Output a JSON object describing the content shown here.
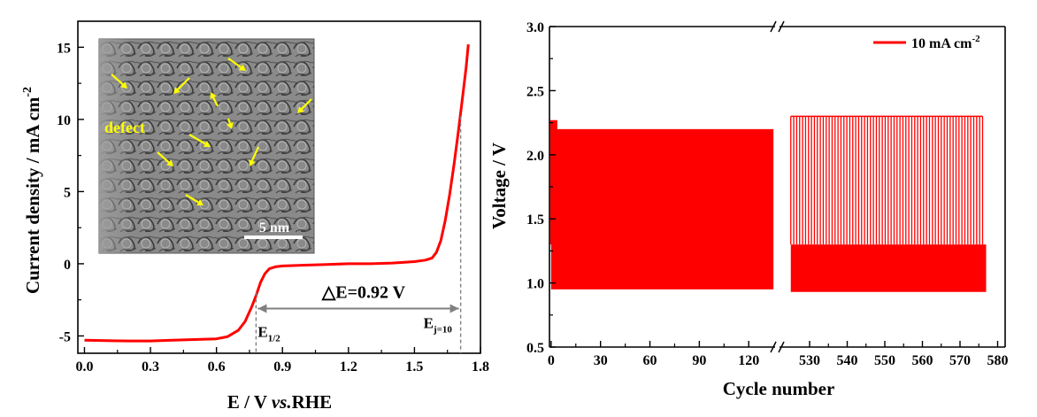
{
  "chart_data": [
    {
      "type": "line",
      "xlabel_main": "E / V",
      "xlabel_italic": "vs.",
      "xlabel_tail": "RHE",
      "ylabel": "Current density / mA cm",
      "ylabel_sup": "-2",
      "xlim": [
        -0.03,
        1.8
      ],
      "ylim": [
        -6.2,
        16.8
      ],
      "xticks": [
        "0.0",
        "0.3",
        "0.6",
        "0.9",
        "1.2",
        "1.5",
        "1.8"
      ],
      "yticks": [
        "-5",
        "0",
        "5",
        "10",
        "15"
      ],
      "series": [
        {
          "color": "#ff0000",
          "points": [
            [
              0.0,
              -5.3
            ],
            [
              0.1,
              -5.33
            ],
            [
              0.2,
              -5.35
            ],
            [
              0.3,
              -5.35
            ],
            [
              0.4,
              -5.3
            ],
            [
              0.5,
              -5.25
            ],
            [
              0.6,
              -5.2
            ],
            [
              0.65,
              -5.05
            ],
            [
              0.7,
              -4.6
            ],
            [
              0.73,
              -4.0
            ],
            [
              0.76,
              -3.0
            ],
            [
              0.78,
              -2.2
            ],
            [
              0.8,
              -1.3
            ],
            [
              0.82,
              -0.7
            ],
            [
              0.84,
              -0.35
            ],
            [
              0.87,
              -0.2
            ],
            [
              0.9,
              -0.15
            ],
            [
              1.0,
              -0.1
            ],
            [
              1.1,
              -0.05
            ],
            [
              1.2,
              0.0
            ],
            [
              1.3,
              0.0
            ],
            [
              1.4,
              0.05
            ],
            [
              1.5,
              0.15
            ],
            [
              1.55,
              0.25
            ],
            [
              1.58,
              0.4
            ],
            [
              1.6,
              0.8
            ],
            [
              1.62,
              1.6
            ],
            [
              1.64,
              3.0
            ],
            [
              1.66,
              4.8
            ],
            [
              1.68,
              6.9
            ],
            [
              1.7,
              9.2
            ],
            [
              1.72,
              11.7
            ],
            [
              1.735,
              13.6
            ],
            [
              1.745,
              15.2
            ]
          ]
        }
      ],
      "annotations": {
        "delta_label": "△E=0.92 V",
        "e_half_base": "E",
        "e_half_sub": "1/2",
        "e_j_base": "E",
        "e_j_sub": "j=10",
        "e_half_x": 0.78,
        "e_j_x": 1.71,
        "arrow_y": -3.1
      },
      "inset": {
        "defect_label": "defect",
        "scale_label": "5 nm",
        "arrow_color": "#ffff00"
      }
    },
    {
      "type": "line",
      "xlabel": "Cycle number",
      "ylabel": "Voltage / V",
      "ylim": [
        0.5,
        3.0
      ],
      "yticks": [
        "0.5",
        "1.0",
        "1.5",
        "2.0",
        "2.5",
        "3.0"
      ],
      "xticks_left": [
        "0",
        "30",
        "60",
        "90",
        "120"
      ],
      "xticks_right": [
        "530",
        "540",
        "550",
        "560",
        "570",
        "580"
      ],
      "xlim_left": [
        -1,
        136
      ],
      "xlim_right": [
        522,
        582
      ],
      "legend": "10 mA cm",
      "legend_sup": "-2",
      "legend_position": "top-right",
      "color": "#ff0000",
      "segment_left": {
        "from_cycle": 0,
        "to_cycle": 135,
        "v_high": 2.2,
        "v_low": 0.95
      },
      "segment_right": {
        "from_cycle": 525,
        "to_cycle": 576,
        "v_high": 2.3,
        "v_low": 0.93
      }
    }
  ]
}
